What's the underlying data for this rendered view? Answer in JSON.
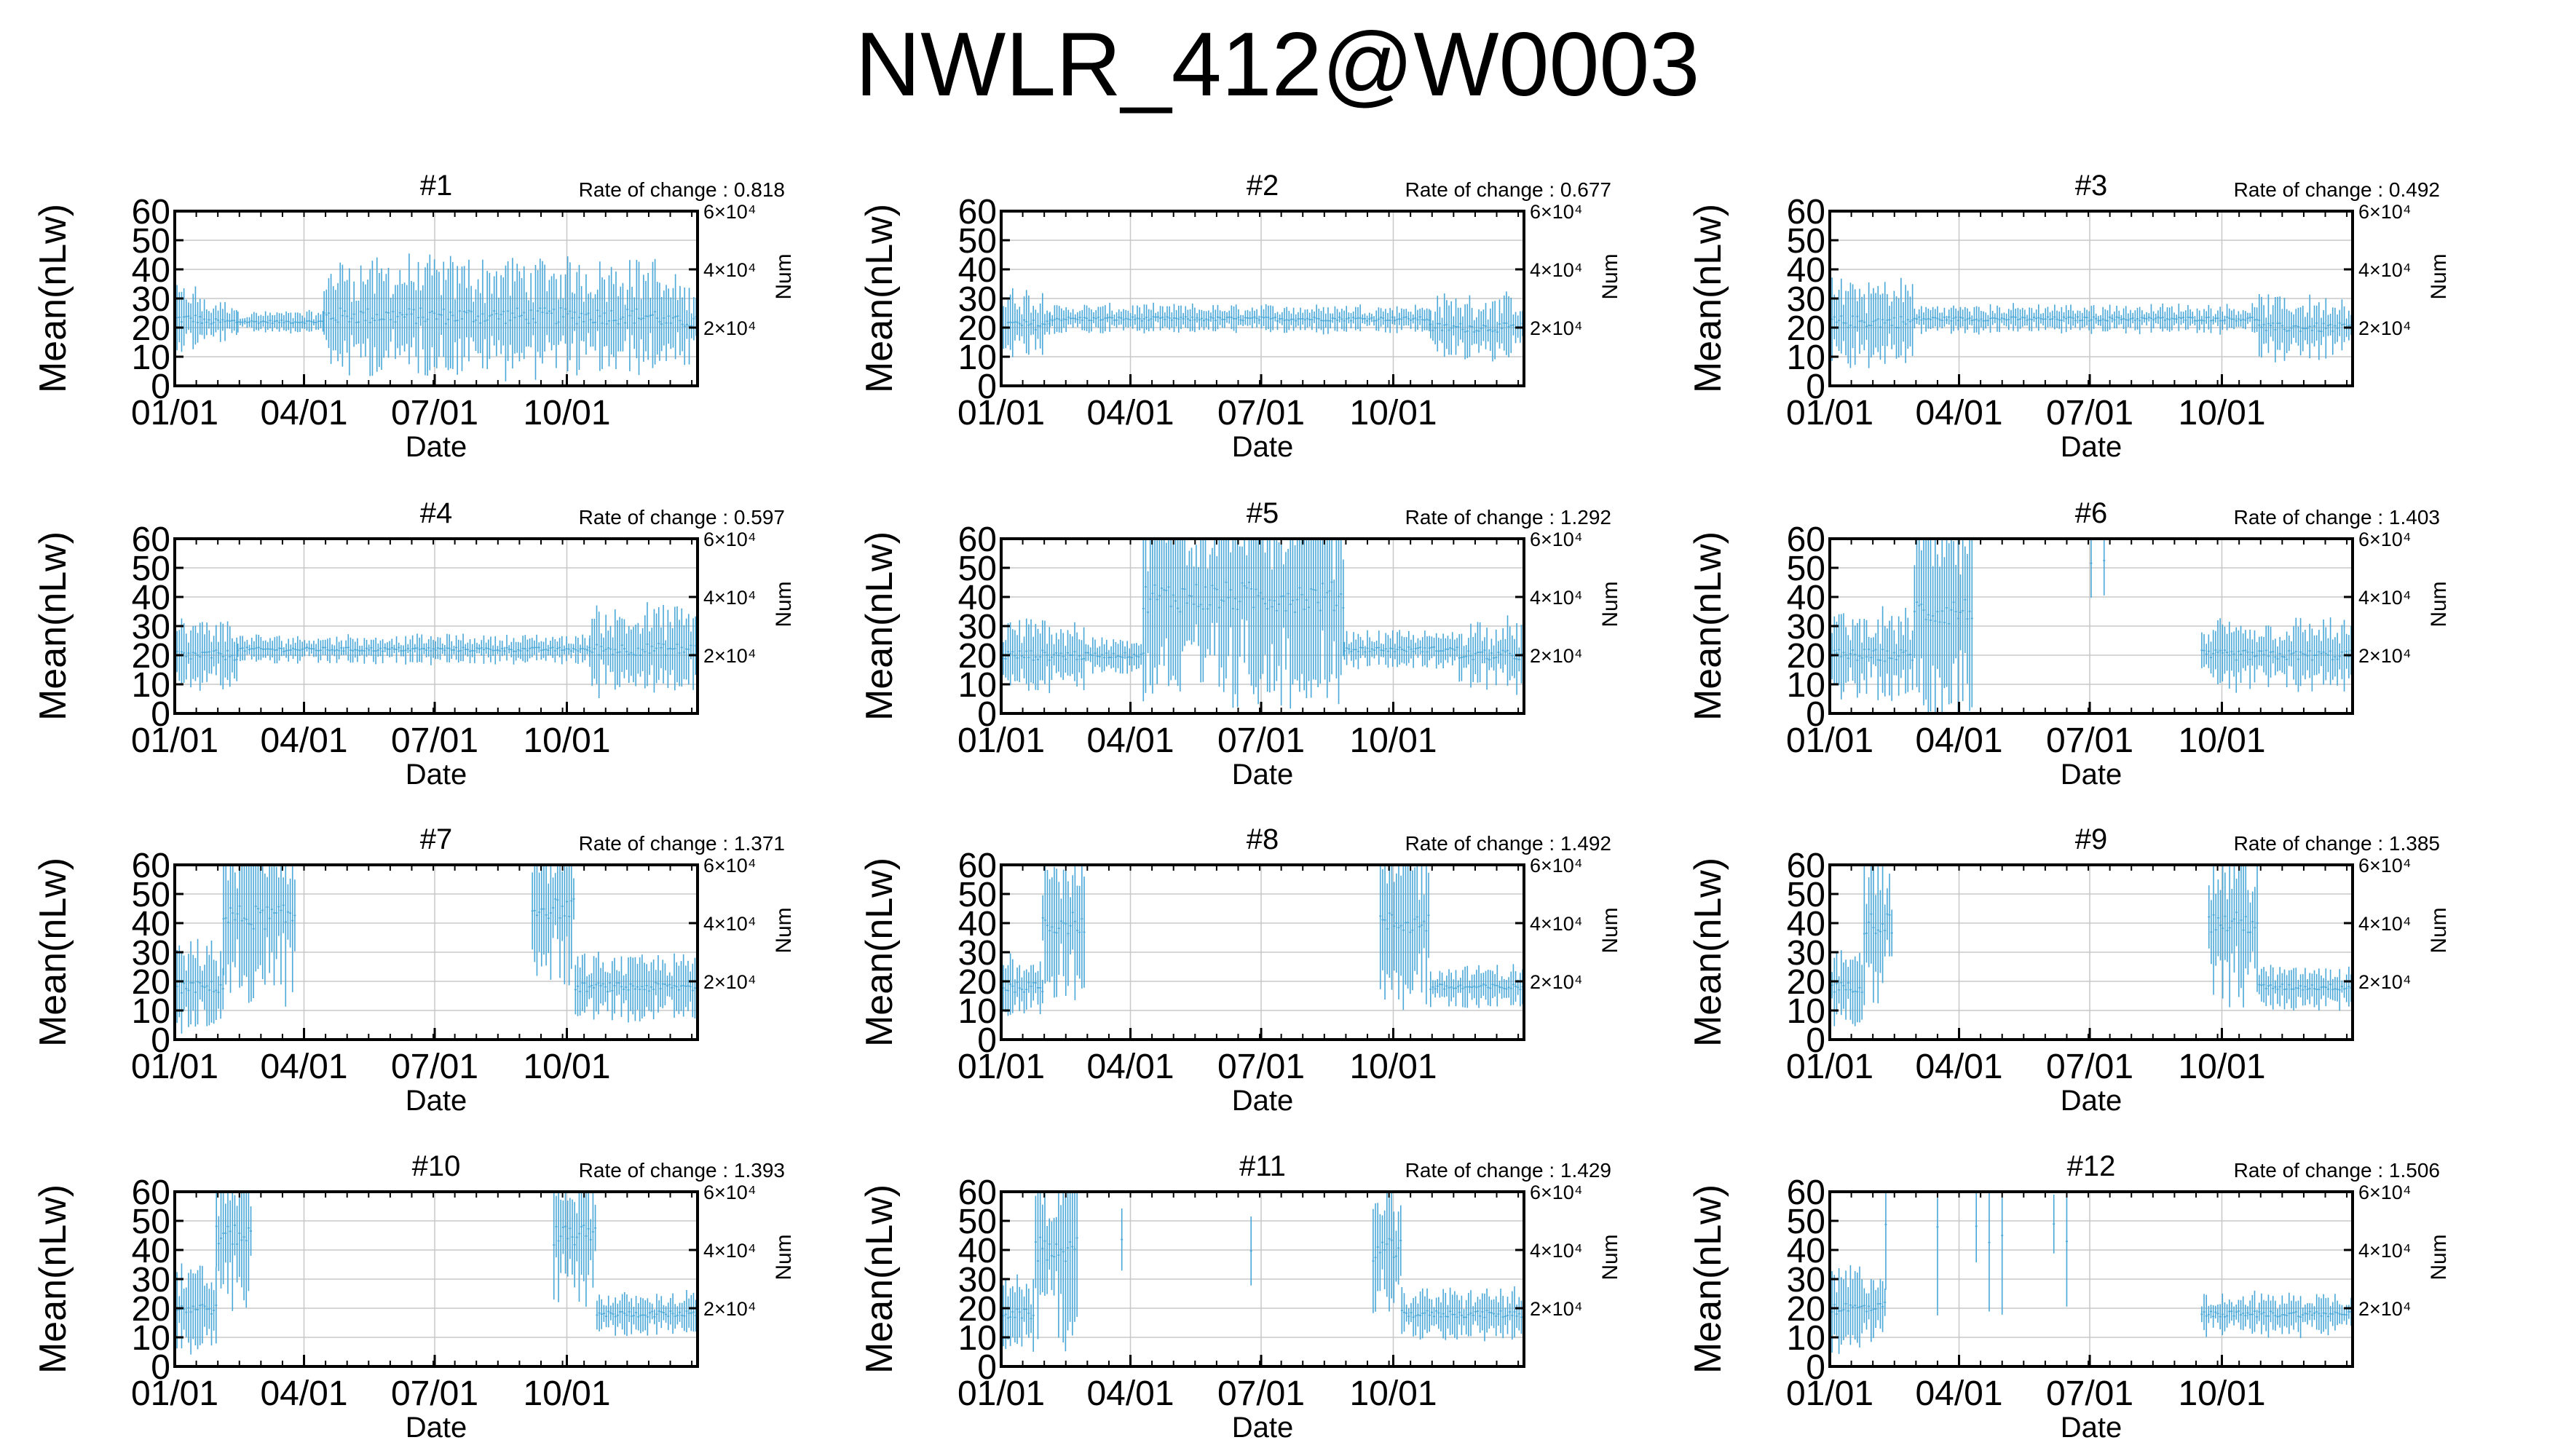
{
  "page": {
    "title": "NWLR_412@W0003"
  },
  "chart_data": {
    "type": "grid",
    "shared": {
      "ylabel": "Mean(nLw)",
      "y2label": "Num",
      "xlabel": "Date",
      "ylim": [
        0,
        60
      ],
      "yticks": [
        0,
        10,
        20,
        30,
        40,
        50,
        60
      ],
      "y2ticks": [
        "2×10⁴",
        "4×10⁴",
        "6×10⁴"
      ],
      "y2tick_data_values": [
        20,
        40,
        60
      ],
      "xlim": [
        1,
        365
      ],
      "xtick_days": [
        1,
        91,
        182,
        274
      ],
      "xticks": [
        "01/01",
        "04/01",
        "07/01",
        "10/01"
      ],
      "grid": true,
      "series_color": "#4aa8d8",
      "x_units": "day of year (ticks printed as MM/DD)",
      "rate_label": "Rate of change : "
    },
    "panels": [
      {
        "title": "#1",
        "rate": "0.818",
        "segments": [
          {
            "from": 1,
            "to": 20,
            "center": 23,
            "spread": 9
          },
          {
            "from": 20,
            "to": 45,
            "center": 22,
            "spread": 6
          },
          {
            "from": 45,
            "to": 105,
            "center": 22,
            "spread": 3
          },
          {
            "from": 105,
            "to": 340,
            "center": 24,
            "spread": 16
          },
          {
            "from": 340,
            "to": 365,
            "center": 22,
            "spread": 12
          }
        ]
      },
      {
        "title": "#2",
        "rate": "0.677",
        "segments": [
          {
            "from": 1,
            "to": 35,
            "center": 21,
            "spread": 10
          },
          {
            "from": 35,
            "to": 300,
            "center": 23,
            "spread": 4
          },
          {
            "from": 300,
            "to": 365,
            "center": 20,
            "spread": 9
          }
        ]
      },
      {
        "title": "#3",
        "rate": "0.492",
        "segments": [
          {
            "from": 1,
            "to": 60,
            "center": 22,
            "spread": 12
          },
          {
            "from": 60,
            "to": 300,
            "center": 23,
            "spread": 4
          },
          {
            "from": 300,
            "to": 365,
            "center": 20,
            "spread": 9
          }
        ]
      },
      {
        "title": "#4",
        "rate": "0.597",
        "segments": [
          {
            "from": 1,
            "to": 45,
            "center": 20,
            "spread": 10
          },
          {
            "from": 45,
            "to": 290,
            "center": 22,
            "spread": 4
          },
          {
            "from": 290,
            "to": 365,
            "center": 22,
            "spread": 12
          }
        ]
      },
      {
        "title": "#5",
        "rate": "1.292",
        "segments": [
          {
            "from": 1,
            "to": 60,
            "center": 20,
            "spread": 10
          },
          {
            "from": 60,
            "to": 100,
            "center": 20,
            "spread": 5
          },
          {
            "from": 100,
            "to": 240,
            "center": 40,
            "spread": 30
          },
          {
            "from": 240,
            "to": 320,
            "center": 22,
            "spread": 5
          },
          {
            "from": 320,
            "to": 365,
            "center": 20,
            "spread": 10
          }
        ]
      },
      {
        "title": "#6",
        "rate": "1.403",
        "segments": [
          {
            "from": 1,
            "to": 60,
            "center": 20,
            "spread": 12
          },
          {
            "from": 60,
            "to": 100,
            "center": 35,
            "spread": 28
          },
          {
            "from": 165,
            "to": 200,
            "center": 50,
            "spread": 15,
            "sparse": true
          },
          {
            "from": 260,
            "to": 365,
            "center": 20,
            "spread": 10
          }
        ]
      },
      {
        "title": "#7",
        "rate": "1.371",
        "segments": [
          {
            "from": 1,
            "to": 35,
            "center": 18,
            "spread": 12
          },
          {
            "from": 35,
            "to": 85,
            "center": 42,
            "spread": 24
          },
          {
            "from": 250,
            "to": 280,
            "center": 45,
            "spread": 20
          },
          {
            "from": 280,
            "to": 365,
            "center": 18,
            "spread": 9
          }
        ]
      },
      {
        "title": "#8",
        "rate": "1.492",
        "segments": [
          {
            "from": 1,
            "to": 30,
            "center": 18,
            "spread": 10
          },
          {
            "from": 30,
            "to": 60,
            "center": 40,
            "spread": 22
          },
          {
            "from": 265,
            "to": 300,
            "center": 40,
            "spread": 22
          },
          {
            "from": 300,
            "to": 365,
            "center": 18,
            "spread": 6
          }
        ]
      },
      {
        "title": "#9",
        "rate": "1.385",
        "segments": [
          {
            "from": 1,
            "to": 25,
            "center": 18,
            "spread": 10
          },
          {
            "from": 25,
            "to": 45,
            "center": 40,
            "spread": 22
          },
          {
            "from": 265,
            "to": 300,
            "center": 40,
            "spread": 22
          },
          {
            "from": 300,
            "to": 365,
            "center": 18,
            "spread": 6
          }
        ]
      },
      {
        "title": "#10",
        "rate": "1.393",
        "segments": [
          {
            "from": 1,
            "to": 30,
            "center": 20,
            "spread": 12
          },
          {
            "from": 30,
            "to": 55,
            "center": 45,
            "spread": 20
          },
          {
            "from": 175,
            "to": 178,
            "center": 40,
            "spread": 15,
            "sparse": true
          },
          {
            "from": 265,
            "to": 295,
            "center": 45,
            "spread": 20
          },
          {
            "from": 295,
            "to": 365,
            "center": 18,
            "spread": 6
          }
        ]
      },
      {
        "title": "#11",
        "rate": "1.429",
        "segments": [
          {
            "from": 1,
            "to": 25,
            "center": 18,
            "spread": 10
          },
          {
            "from": 25,
            "to": 55,
            "center": 40,
            "spread": 25
          },
          {
            "from": 85,
            "to": 88,
            "center": 45,
            "spread": 12,
            "sparse": true
          },
          {
            "from": 175,
            "to": 180,
            "center": 40,
            "spread": 20,
            "sparse": true
          },
          {
            "from": 260,
            "to": 280,
            "center": 40,
            "spread": 22
          },
          {
            "from": 280,
            "to": 365,
            "center": 18,
            "spread": 7
          }
        ]
      },
      {
        "title": "#12",
        "rate": "1.506",
        "segments": [
          {
            "from": 1,
            "to": 40,
            "center": 20,
            "spread": 12
          },
          {
            "from": 40,
            "to": 180,
            "center": 45,
            "spread": 25,
            "sparse": true
          },
          {
            "from": 260,
            "to": 365,
            "center": 18,
            "spread": 6
          }
        ]
      }
    ]
  }
}
